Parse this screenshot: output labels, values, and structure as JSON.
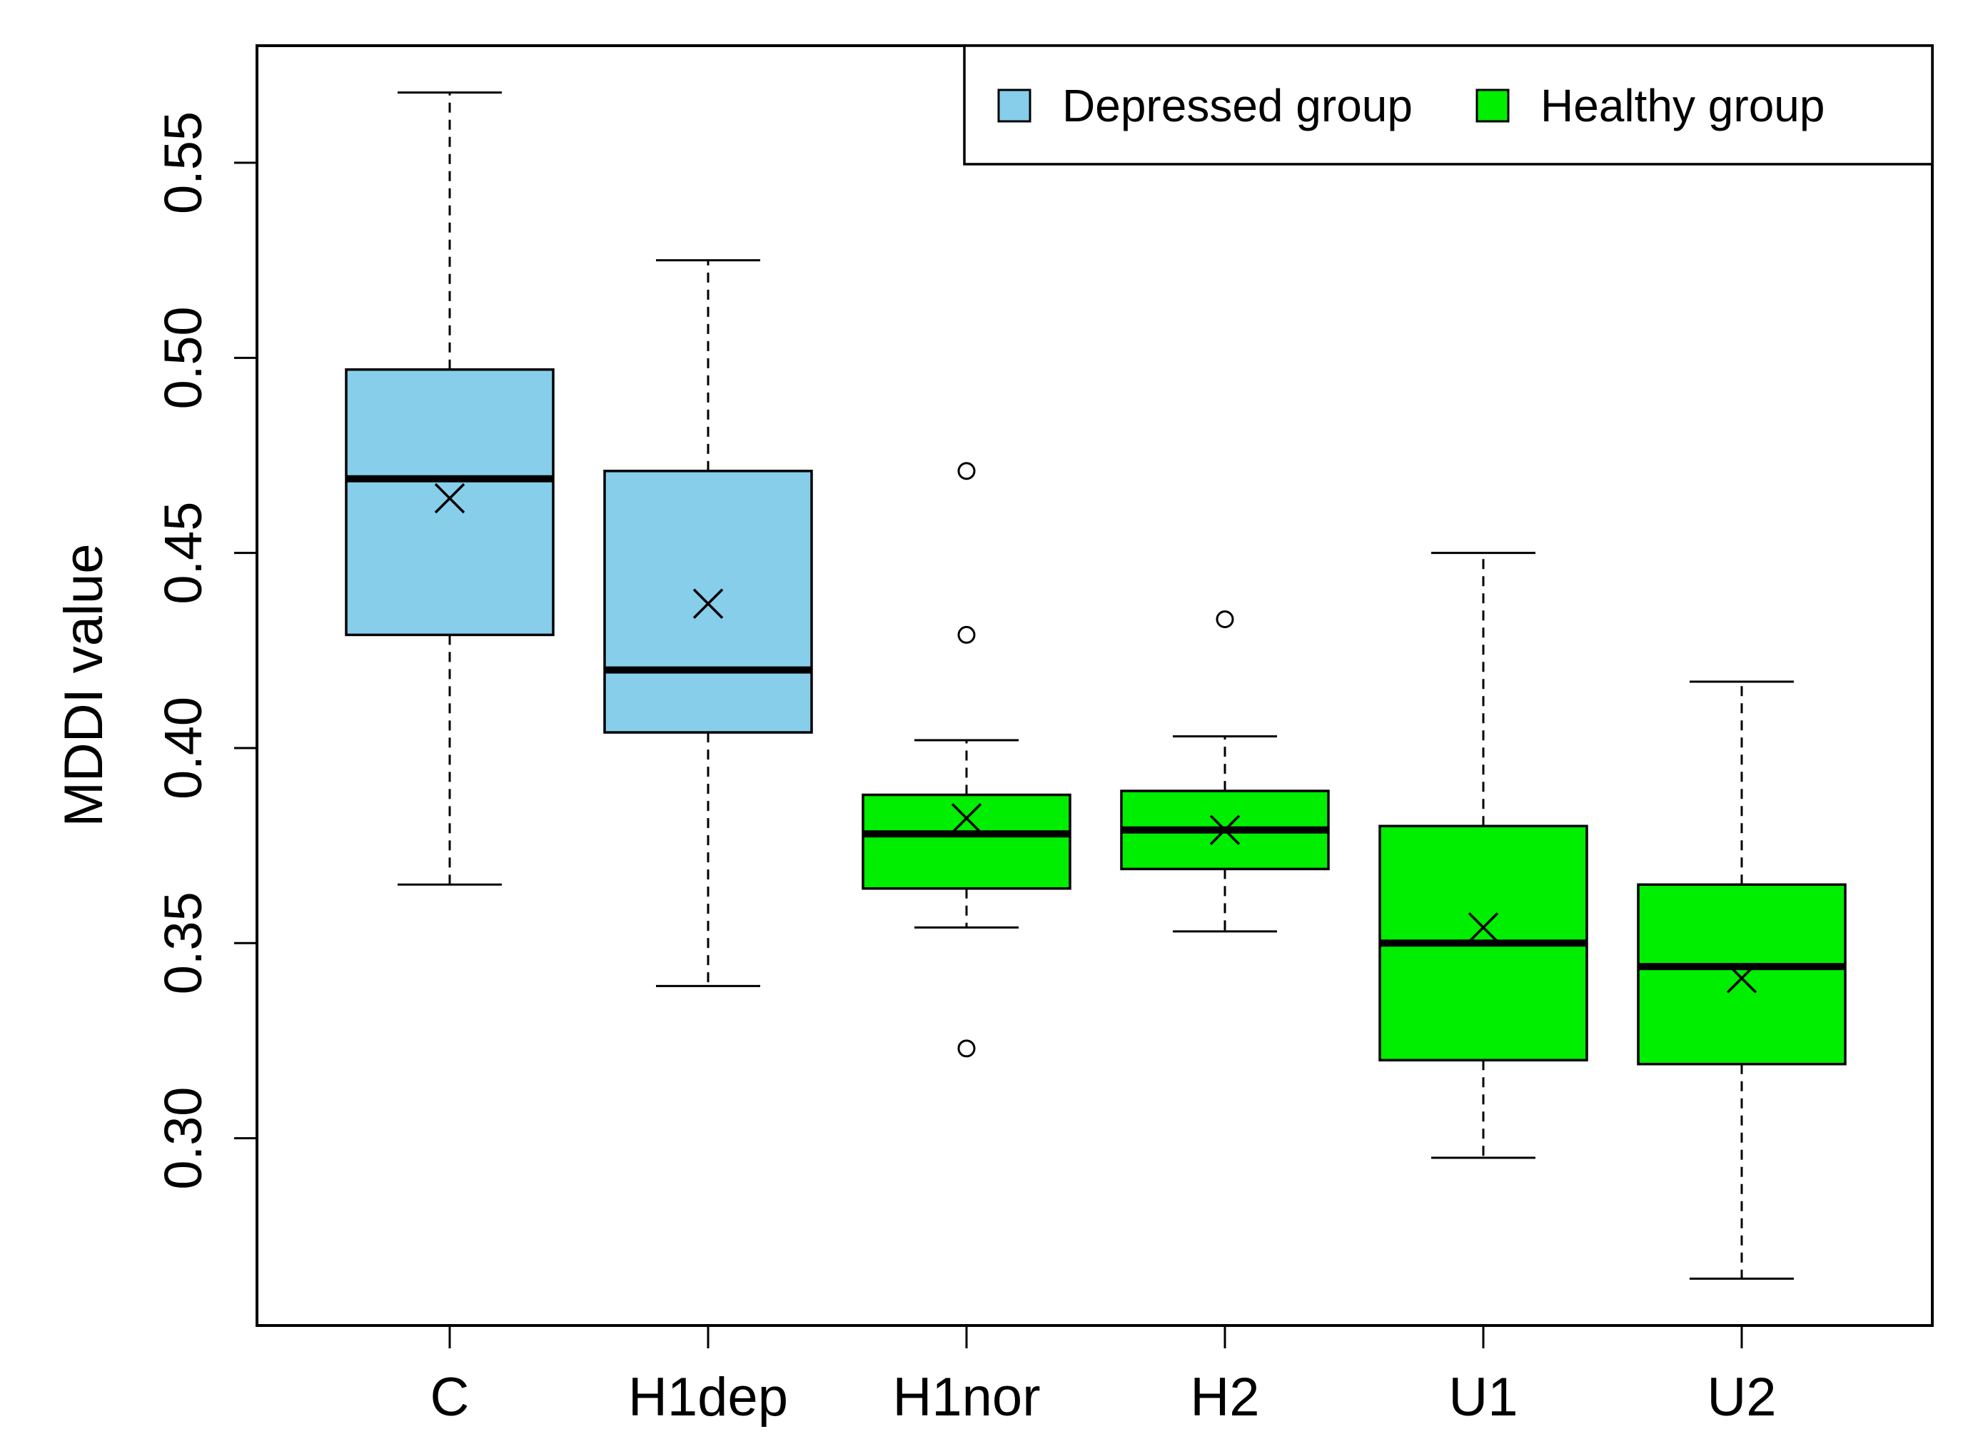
{
  "chart_data": {
    "type": "boxplot",
    "title": "",
    "xlabel": "",
    "ylabel": "MDDI value",
    "ylim": [
      0.252,
      0.58
    ],
    "yticks": [
      0.3,
      0.35,
      0.4,
      0.45,
      0.5,
      0.55
    ],
    "ytick_labels": [
      "0.30",
      "0.35",
      "0.40",
      "0.45",
      "0.50",
      "0.55"
    ],
    "categories": [
      "C",
      "H1dep",
      "H1nor",
      "H2",
      "U1",
      "U2"
    ],
    "legend": {
      "position": "top-right",
      "entries": [
        {
          "label": "Depressed group",
          "color": "#87CEEB"
        },
        {
          "label": "Healthy group",
          "color": "#00EE00"
        }
      ]
    },
    "boxes": [
      {
        "category": "C",
        "group": "Depressed group",
        "whisker_low": 0.365,
        "q1": 0.429,
        "median": 0.469,
        "q3": 0.497,
        "whisker_high": 0.568,
        "mean": 0.464,
        "outliers": []
      },
      {
        "category": "H1dep",
        "group": "Depressed group",
        "whisker_low": 0.339,
        "q1": 0.404,
        "median": 0.42,
        "q3": 0.471,
        "whisker_high": 0.525,
        "mean": 0.437,
        "outliers": []
      },
      {
        "category": "H1nor",
        "group": "Healthy group",
        "whisker_low": 0.354,
        "q1": 0.364,
        "median": 0.378,
        "q3": 0.388,
        "whisker_high": 0.402,
        "mean": 0.382,
        "outliers": [
          0.471,
          0.429,
          0.323
        ]
      },
      {
        "category": "H2",
        "group": "Healthy group",
        "whisker_low": 0.353,
        "q1": 0.369,
        "median": 0.379,
        "q3": 0.389,
        "whisker_high": 0.403,
        "mean": 0.379,
        "outliers": [
          0.433
        ]
      },
      {
        "category": "U1",
        "group": "Healthy group",
        "whisker_low": 0.295,
        "q1": 0.32,
        "median": 0.35,
        "q3": 0.38,
        "whisker_high": 0.45,
        "mean": 0.354,
        "outliers": []
      },
      {
        "category": "U2",
        "group": "Healthy group",
        "whisker_low": 0.264,
        "q1": 0.319,
        "median": 0.344,
        "q3": 0.365,
        "whisker_high": 0.417,
        "mean": 0.341,
        "outliers": []
      }
    ]
  }
}
